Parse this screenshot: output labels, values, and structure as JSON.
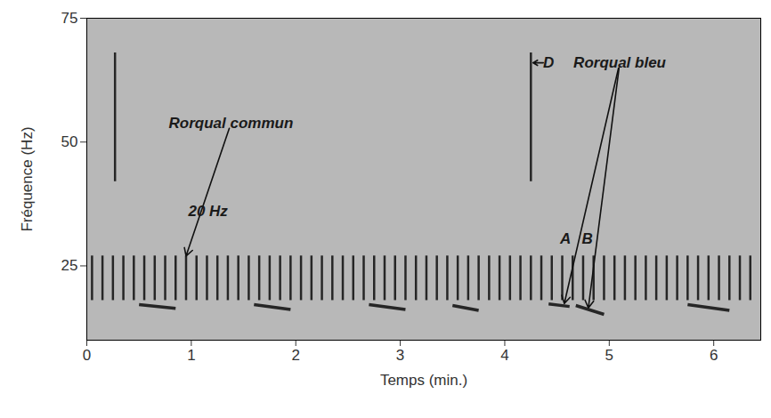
{
  "chart_data": {
    "type": "spectrogram",
    "xlabel": "Temps (min.)",
    "ylabel": "Fréquence (Hz)",
    "xlim": [
      0,
      6.45
    ],
    "ylim": [
      10,
      75
    ],
    "xticks": [
      0,
      1,
      2,
      3,
      4,
      5,
      6
    ],
    "yticks": [
      25,
      50,
      75
    ],
    "series": [
      {
        "type": "pulse",
        "color": "#262626",
        "x": [
          0.05,
          0.15,
          0.25,
          0.35,
          0.45,
          0.55,
          0.65,
          0.75,
          0.85,
          0.95,
          1.05,
          1.15,
          1.25,
          1.35,
          1.45,
          1.55,
          1.65,
          1.75,
          1.85,
          1.95,
          2.05,
          2.15,
          2.25,
          2.35,
          2.45,
          2.55,
          2.65,
          2.75,
          2.85,
          2.95,
          3.05,
          3.15,
          3.25,
          3.35,
          3.45,
          3.55,
          3.65,
          3.75,
          3.85,
          3.95,
          4.05,
          4.15,
          4.25,
          4.35,
          4.45,
          4.55,
          4.65,
          4.75,
          4.85,
          4.95,
          5.05,
          5.15,
          5.25,
          5.35,
          5.45,
          5.55,
          5.65,
          5.75,
          5.85,
          5.95,
          6.05,
          6.15,
          6.25,
          6.35
        ],
        "y_low": 18,
        "y_high": 27
      },
      {
        "type": "pulse",
        "color": "#262626",
        "x": [
          0.27,
          4.25
        ],
        "y_low": 42,
        "y_high": 68
      },
      {
        "type": "sweep",
        "color": "#262626",
        "x_start": [
          0.5,
          1.6,
          2.7,
          3.5,
          4.42,
          4.68,
          5.75
        ],
        "x_end": [
          0.85,
          1.95,
          3.05,
          3.75,
          4.62,
          4.95,
          6.15
        ],
        "y_start": [
          17.2,
          17.2,
          17.2,
          17.0,
          17.3,
          17.0,
          17.2
        ],
        "y_end": [
          16.4,
          16.2,
          16.2,
          16.0,
          16.8,
          15.2,
          16.0
        ]
      }
    ],
    "annotations": [
      {
        "text": "Rorqual commun",
        "x": 1.38,
        "y": 53.8,
        "arrows": [
          [
            0.95,
            27
          ]
        ]
      },
      {
        "text": "20 Hz",
        "x": 1.16,
        "y": 36,
        "arrows": []
      },
      {
        "text": "D",
        "x": 4.42,
        "y": 66,
        "arrows": [
          [
            4.27,
            66
          ]
        ]
      },
      {
        "text": "Rorqual bleu",
        "x": 5.1,
        "y": 66,
        "arrows": [
          [
            4.57,
            17.4
          ],
          [
            4.8,
            16.5
          ]
        ]
      },
      {
        "text": "A",
        "x": 4.58,
        "y": 30.5,
        "arrows": []
      },
      {
        "text": "B",
        "x": 4.79,
        "y": 30.5,
        "arrows": []
      }
    ]
  }
}
